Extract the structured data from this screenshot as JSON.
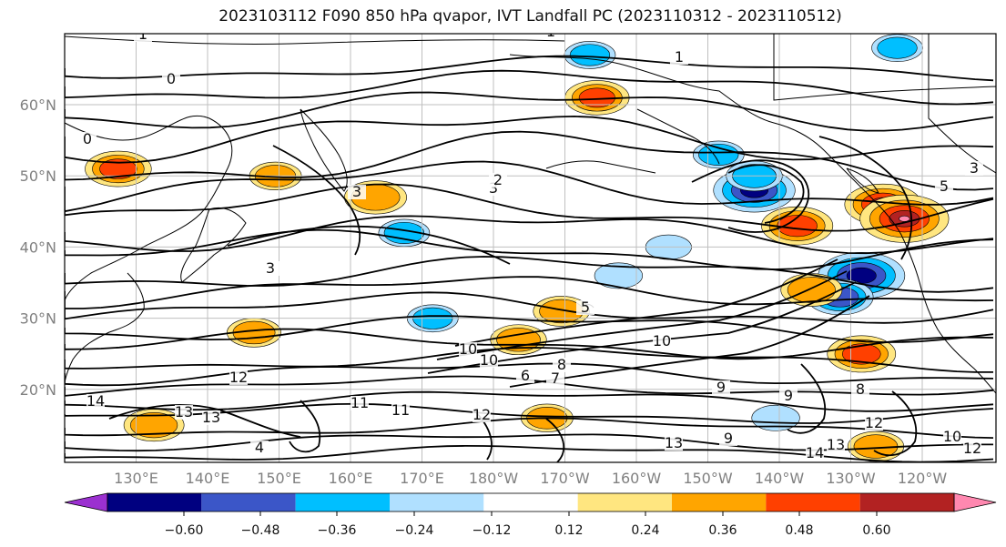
{
  "chart_data": {
    "type": "heatmap",
    "title": "2023103112 F090 850 hPa qvapor, IVT Landfall PC (2023110312 - 2023110512)",
    "grid": true,
    "lon_ticks": [
      "130°E",
      "140°E",
      "150°E",
      "160°E",
      "170°E",
      "180°W",
      "170°W",
      "160°W",
      "150°W",
      "140°W",
      "130°W",
      "120°W"
    ],
    "lat_ticks": [
      "60°N",
      "50°N",
      "40°N",
      "30°N",
      "20°N"
    ],
    "colorbar": {
      "ticks": [
        "−0.60",
        "−0.48",
        "−0.36",
        "−0.24",
        "−0.12",
        "0.12",
        "0.24",
        "0.36",
        "0.48",
        "0.60"
      ],
      "colors": [
        "#9b30d0",
        "#000080",
        "#3b56c8",
        "#00bfff",
        "#b0e0ff",
        "#ffffff",
        "#ffe680",
        "#ffa500",
        "#ff4000",
        "#b22222",
        "#ff88b0"
      ]
    },
    "contour_labels": [
      "1",
      "1",
      "1",
      "0",
      "0",
      "3",
      "3",
      "3",
      "3",
      "5",
      "5",
      "6",
      "7",
      "8",
      "10",
      "10",
      "10",
      "10",
      "11",
      "11",
      "12",
      "12",
      "12",
      "12",
      "13",
      "13",
      "13",
      "13",
      "14",
      "14",
      "9",
      "9",
      "9",
      "8",
      "2",
      "4"
    ],
    "anomaly_blobs": [
      {
        "lon": -143,
        "lat": 48,
        "value": -0.55
      },
      {
        "lon": -137,
        "lat": 43,
        "value": 0.45
      },
      {
        "lon": -125,
        "lat": 46,
        "value": 0.5
      },
      {
        "lon": -122,
        "lat": 44,
        "value": 0.62
      },
      {
        "lon": -128,
        "lat": 36,
        "value": -0.6
      },
      {
        "lon": -131,
        "lat": 33,
        "value": -0.4
      },
      {
        "lon": -128,
        "lat": 25,
        "value": 0.42
      },
      {
        "lon": -135,
        "lat": 34,
        "value": 0.35
      },
      {
        "lon": -165,
        "lat": 61,
        "value": 0.38
      },
      {
        "lon": 164,
        "lat": 47,
        "value": 0.36
      },
      {
        "lon": 128,
        "lat": 51,
        "value": 0.4
      },
      {
        "lon": -176,
        "lat": 27,
        "value": 0.3
      },
      {
        "lon": -170,
        "lat": 31,
        "value": 0.3
      },
      {
        "lon": 147,
        "lat": 28,
        "value": 0.28
      },
      {
        "lon": 133,
        "lat": 15,
        "value": 0.34
      },
      {
        "lon": -143,
        "lat": 50,
        "value": -0.3
      },
      {
        "lon": -148,
        "lat": 53,
        "value": -0.25
      },
      {
        "lon": -166,
        "lat": 67,
        "value": -0.25
      },
      {
        "lon": -123,
        "lat": 68,
        "value": -0.25
      },
      {
        "lon": 168,
        "lat": 42,
        "value": -0.25
      },
      {
        "lon": 172,
        "lat": 30,
        "value": -0.25
      },
      {
        "lon": -162,
        "lat": 36,
        "value": -0.22
      },
      {
        "lon": -155,
        "lat": 40,
        "value": -0.2
      },
      {
        "lon": -140,
        "lat": 16,
        "value": -0.22
      },
      {
        "lon": 150,
        "lat": 50,
        "value": 0.26
      },
      {
        "lon": -172,
        "lat": 16,
        "value": 0.26
      },
      {
        "lon": -126,
        "lat": 12,
        "value": 0.3
      }
    ]
  }
}
